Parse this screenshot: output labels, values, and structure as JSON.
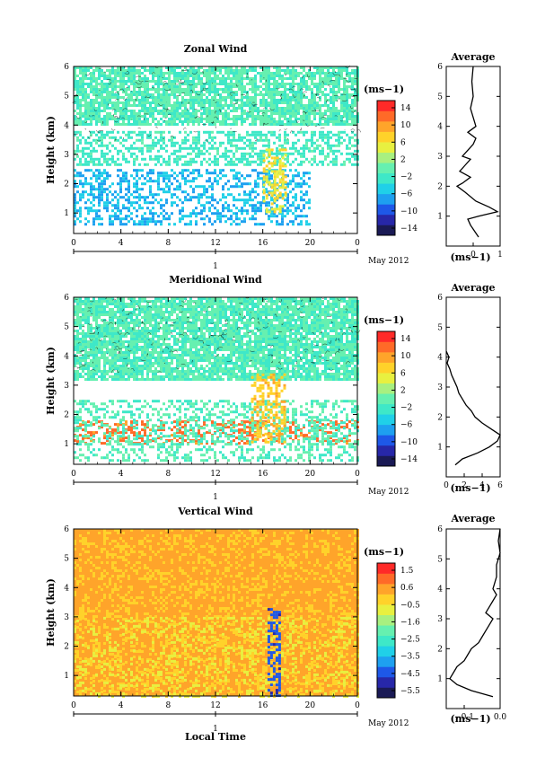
{
  "panels": [
    {
      "title": "Zonal Wind",
      "ylabel": "Height (km)",
      "xlabel": "",
      "xticks": [
        "0",
        "4",
        "8",
        "12",
        "16",
        "20",
        "0"
      ],
      "yticks": [
        "1",
        "2",
        "3",
        "4",
        "5",
        "6"
      ],
      "day_label": "1",
      "month_label": "May 2012",
      "colorbar": {
        "unit": "(ms−1)",
        "ticks": [
          "14",
          "10",
          "6",
          "2",
          "−2",
          "−6",
          "−10",
          "−14"
        ],
        "range": [
          -16,
          16
        ]
      },
      "average": {
        "title": "Average",
        "xlabel": "(ms−1)",
        "xticks": [
          "0",
          "1"
        ],
        "yticks": [
          "1",
          "2",
          "3",
          "4",
          "5",
          "6"
        ],
        "xlim": [
          -1,
          1
        ],
        "profile": [
          [
            0.3,
            0.2
          ],
          [
            0.7,
            -0.1
          ],
          [
            0.9,
            -0.2
          ],
          [
            1.0,
            0.2
          ],
          [
            1.15,
            0.9
          ],
          [
            1.3,
            0.6
          ],
          [
            1.5,
            0.1
          ],
          [
            1.8,
            -0.3
          ],
          [
            2.0,
            -0.6
          ],
          [
            2.1,
            -0.4
          ],
          [
            2.3,
            -0.1
          ],
          [
            2.5,
            -0.5
          ],
          [
            2.7,
            -0.3
          ],
          [
            2.9,
            -0.1
          ],
          [
            3.0,
            -0.4
          ],
          [
            3.2,
            -0.2
          ],
          [
            3.4,
            0.0
          ],
          [
            3.6,
            0.1
          ],
          [
            3.8,
            -0.2
          ],
          [
            4.0,
            0.1
          ],
          [
            4.3,
            0.0
          ],
          [
            4.6,
            -0.1
          ],
          [
            5.0,
            0.0
          ],
          [
            5.5,
            -0.05
          ],
          [
            6.0,
            0.0
          ]
        ]
      }
    },
    {
      "title": "Meridional Wind",
      "ylabel": "Height (km)",
      "xlabel": "",
      "xticks": [
        "0",
        "4",
        "8",
        "12",
        "16",
        "20",
        "0"
      ],
      "yticks": [
        "1",
        "2",
        "3",
        "4",
        "5",
        "6"
      ],
      "day_label": "1",
      "month_label": "May 2012",
      "colorbar": {
        "unit": "(ms−1)",
        "ticks": [
          "14",
          "10",
          "6",
          "2",
          "−2",
          "−6",
          "−10",
          "−14"
        ],
        "range": [
          -16,
          16
        ]
      },
      "average": {
        "title": "Average",
        "xlabel": "(ms−1)",
        "xticks": [
          "0",
          "2",
          "4",
          "6"
        ],
        "yticks": [
          "1",
          "2",
          "3",
          "4",
          "5",
          "6"
        ],
        "xlim": [
          0,
          6
        ],
        "profile": [
          [
            0.4,
            1.0
          ],
          [
            0.6,
            1.8
          ],
          [
            0.8,
            3.5
          ],
          [
            1.0,
            4.8
          ],
          [
            1.2,
            5.7
          ],
          [
            1.4,
            6.0
          ],
          [
            1.6,
            5.0
          ],
          [
            1.8,
            4.0
          ],
          [
            2.0,
            3.2
          ],
          [
            2.2,
            2.8
          ],
          [
            2.4,
            2.2
          ],
          [
            2.6,
            1.8
          ],
          [
            2.8,
            1.4
          ],
          [
            3.0,
            1.2
          ],
          [
            3.2,
            0.9
          ],
          [
            3.4,
            0.6
          ],
          [
            3.6,
            0.4
          ],
          [
            3.8,
            0.1
          ],
          [
            4.0,
            0.3
          ],
          [
            4.2,
            0.0
          ]
        ]
      }
    },
    {
      "title": "Vertical Wind",
      "ylabel": "Height (km)",
      "xlabel": "Local Time",
      "xticks": [
        "0",
        "4",
        "8",
        "12",
        "16",
        "20",
        "0"
      ],
      "yticks": [
        "1",
        "2",
        "3",
        "4",
        "5",
        "6"
      ],
      "day_label": "1",
      "month_label": "May 2012",
      "colorbar": {
        "unit": "(ms−1)",
        "ticks": [
          "1.5",
          "0.6",
          "−0.5",
          "−1.6",
          "−2.5",
          "−3.5",
          "−4.5",
          "−5.5"
        ],
        "range": [
          -6,
          2
        ]
      },
      "average": {
        "title": "Average",
        "xlabel": "(ms−1)",
        "xticks": [
          "−0.1",
          "0.0"
        ],
        "yticks": [
          "1",
          "2",
          "3",
          "4",
          "5",
          "6"
        ],
        "xlim": [
          -0.15,
          0.0
        ],
        "profile": [
          [
            0.4,
            -0.02
          ],
          [
            0.6,
            -0.08
          ],
          [
            0.8,
            -0.12
          ],
          [
            1.0,
            -0.14
          ],
          [
            1.2,
            -0.13
          ],
          [
            1.4,
            -0.12
          ],
          [
            1.6,
            -0.1
          ],
          [
            1.8,
            -0.09
          ],
          [
            2.0,
            -0.08
          ],
          [
            2.2,
            -0.06
          ],
          [
            2.4,
            -0.05
          ],
          [
            2.6,
            -0.04
          ],
          [
            2.8,
            -0.03
          ],
          [
            3.0,
            -0.02
          ],
          [
            3.2,
            -0.04
          ],
          [
            3.4,
            -0.03
          ],
          [
            3.6,
            -0.02
          ],
          [
            3.8,
            -0.01
          ],
          [
            4.0,
            -0.02
          ],
          [
            4.4,
            -0.01
          ],
          [
            4.8,
            -0.01
          ],
          [
            5.2,
            0.0
          ],
          [
            5.6,
            -0.005
          ],
          [
            6.0,
            0.0
          ]
        ]
      }
    }
  ],
  "chart_data": [
    {
      "type": "heatmap",
      "title": "Zonal Wind",
      "xlabel": "",
      "ylabel": "Height (km)",
      "xlim": [
        0,
        24
      ],
      "ylim": [
        0.3,
        6.0
      ],
      "colorbar_range": [
        -16,
        16
      ],
      "fields": [
        {
          "y": [
            4.0,
            6.0
          ],
          "x": [
            0,
            24
          ],
          "value": -1,
          "coverage": 0.8
        },
        {
          "y": [
            2.6,
            3.8
          ],
          "x": [
            0,
            24
          ],
          "value": -2,
          "coverage": 0.5
        },
        {
          "y": [
            0.6,
            2.5
          ],
          "x": [
            0,
            20
          ],
          "value": -6,
          "coverage": 0.45
        },
        {
          "y": [
            1.0,
            3.2
          ],
          "x": [
            16,
            18
          ],
          "value": 6,
          "coverage": 0.5
        }
      ]
    },
    {
      "type": "heatmap",
      "title": "Meridional Wind",
      "xlabel": "",
      "ylabel": "Height (km)",
      "xlim": [
        0,
        24
      ],
      "ylim": [
        0.3,
        6.0
      ],
      "colorbar_range": [
        -16,
        16
      ],
      "fields": [
        {
          "y": [
            3.2,
            6.0
          ],
          "x": [
            0,
            24
          ],
          "value": -1,
          "coverage": 0.85
        },
        {
          "y": [
            1.0,
            1.8
          ],
          "x": [
            0,
            24
          ],
          "value": 12,
          "coverage": 0.35
        },
        {
          "y": [
            0.4,
            2.5
          ],
          "x": [
            0,
            24
          ],
          "value": -1,
          "coverage": 0.4
        },
        {
          "y": [
            1.0,
            3.4
          ],
          "x": [
            15,
            18
          ],
          "value": 8,
          "coverage": 0.45
        }
      ]
    },
    {
      "type": "heatmap",
      "title": "Vertical Wind",
      "xlabel": "Local Time",
      "ylabel": "Height (km)",
      "xlim": [
        0,
        24
      ],
      "ylim": [
        0.3,
        6.0
      ],
      "colorbar_range": [
        -6,
        2
      ],
      "fields": [
        {
          "y": [
            0.3,
            6.0
          ],
          "x": [
            0,
            24
          ],
          "value": 0.3,
          "coverage": 1.0
        },
        {
          "y": [
            0.3,
            3.0
          ],
          "x": [
            0,
            24
          ],
          "value": -0.6,
          "coverage": 0.25
        },
        {
          "y": [
            0.3,
            3.3
          ],
          "x": [
            16.4,
            17.4
          ],
          "value": -4.5,
          "coverage": 0.5
        }
      ]
    },
    {
      "type": "line",
      "title": "Average",
      "xlabel": "(ms−1)",
      "series": [
        {
          "values_ref": "panels.0.average.profile"
        }
      ]
    },
    {
      "type": "line",
      "title": "Average",
      "xlabel": "(ms−1)",
      "series": [
        {
          "values_ref": "panels.1.average.profile"
        }
      ]
    },
    {
      "type": "line",
      "title": "Average",
      "xlabel": "(ms−1)",
      "series": [
        {
          "values_ref": "panels.2.average.profile"
        }
      ]
    }
  ],
  "colors": {
    "ramp": [
      "#1a1a55",
      "#2727a8",
      "#1e58e8",
      "#1ea0f0",
      "#20d0e8",
      "#3ee8c8",
      "#66f0b0",
      "#a8f080",
      "#e8f040",
      "#ffd22a",
      "#ffa42a",
      "#ff6a28",
      "#ff2a28"
    ],
    "background": "#ffffff"
  }
}
